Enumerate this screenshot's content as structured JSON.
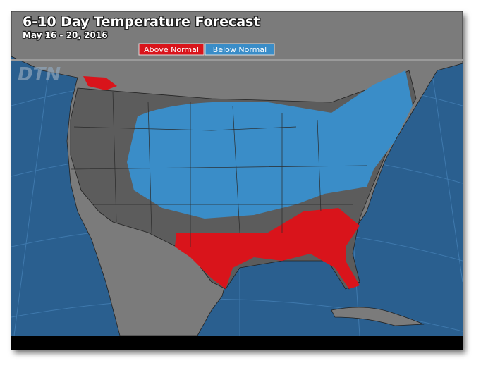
{
  "header": {
    "title": "6-10 Day Temperature Forecast",
    "date": "May 16 - 20, 2016"
  },
  "legend": [
    {
      "label": "Above Normal",
      "color": "#d9141b"
    },
    {
      "label": "Below Normal",
      "color": "#3a8dc8"
    }
  ],
  "watermark": "DTN"
}
